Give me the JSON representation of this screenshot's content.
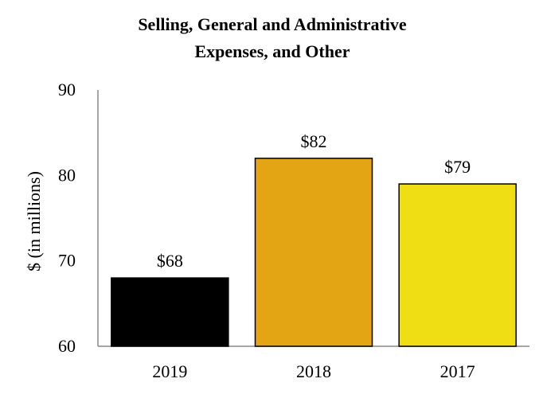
{
  "chart_data": {
    "type": "bar",
    "title_lines": [
      "Selling, General and Administrative",
      "Expenses, and Other"
    ],
    "ylabel": "$ (in millions)",
    "xlabel": "",
    "categories": [
      "2019",
      "2018",
      "2017"
    ],
    "values": [
      68,
      82,
      79
    ],
    "data_labels": [
      "$68",
      "$82",
      "$79"
    ],
    "bar_colors": [
      "#000000",
      "#e3a514",
      "#f0de14"
    ],
    "ylim": [
      60,
      90
    ],
    "yticks": [
      60,
      70,
      80,
      90
    ],
    "ytick_labels": [
      "60",
      "70",
      "80",
      "90"
    ],
    "grid": false,
    "legend": "none"
  }
}
